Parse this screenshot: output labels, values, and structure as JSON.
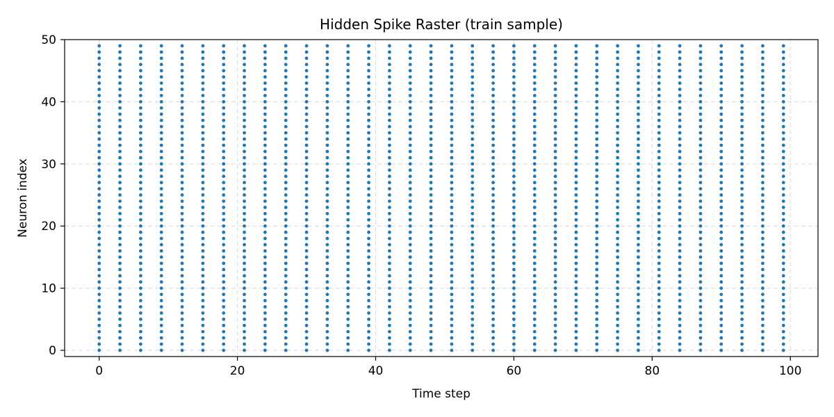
{
  "chart_data": {
    "type": "scatter",
    "title": "Hidden Spike Raster (train sample)",
    "xlabel": "Time step",
    "ylabel": "Neuron index",
    "xlim": [
      -5,
      104
    ],
    "ylim": [
      -1,
      50
    ],
    "xticks": [
      0,
      20,
      40,
      60,
      80,
      100
    ],
    "yticks": [
      0,
      10,
      20,
      30,
      40,
      50
    ],
    "grid": true,
    "marker_color": "#1f77b4",
    "spike_times": [
      0,
      3,
      6,
      9,
      12,
      15,
      18,
      21,
      24,
      27,
      30,
      33,
      36,
      39,
      42,
      45,
      48,
      51,
      54,
      57,
      60,
      63,
      66,
      69,
      72,
      75,
      78,
      81,
      84,
      87,
      90,
      93,
      96,
      99
    ],
    "neurons": [
      0,
      1,
      2,
      3,
      4,
      5,
      6,
      7,
      8,
      9,
      10,
      11,
      12,
      13,
      14,
      15,
      16,
      17,
      18,
      19,
      20,
      21,
      22,
      23,
      24,
      25,
      26,
      27,
      28,
      29,
      30,
      31,
      32,
      33,
      34,
      35,
      36,
      37,
      38,
      39,
      40,
      41,
      42,
      43,
      44,
      45,
      46,
      47,
      48,
      49
    ]
  }
}
